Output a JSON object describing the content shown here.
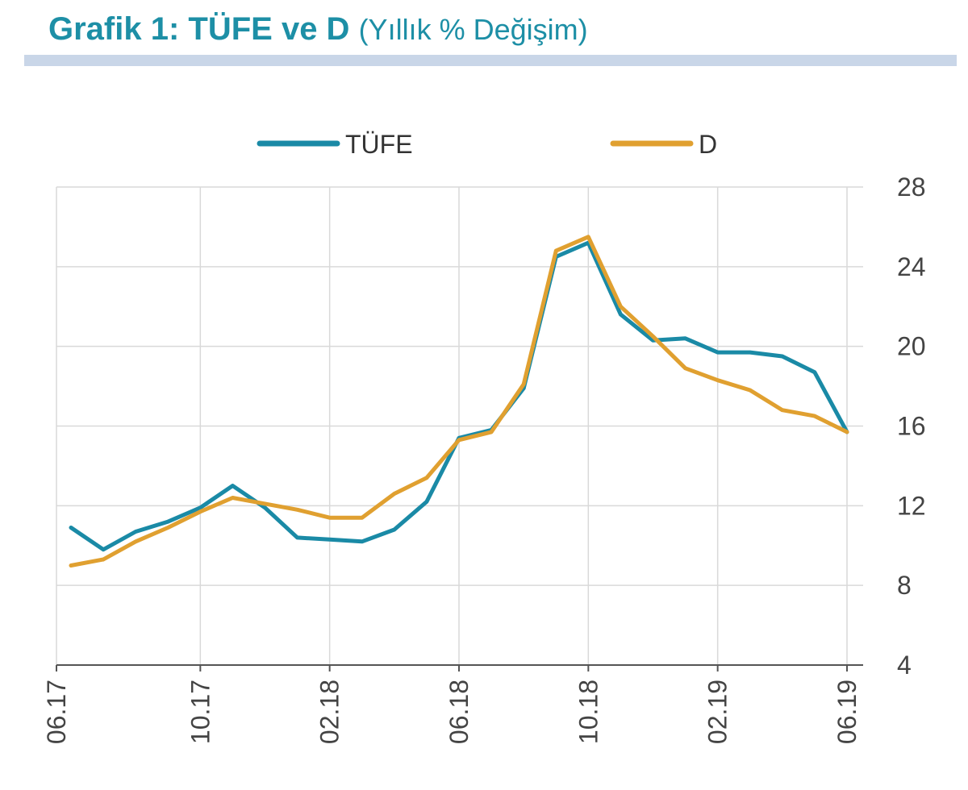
{
  "header": {
    "title_bold": "Grafik 1: TÜFE ve D",
    "title_rest": "(Yıllık % Değişim)"
  },
  "chart_data": {
    "type": "line",
    "title": "Grafik 1: TÜFE ve D (Yıllık % Değişim)",
    "xlabel": "",
    "ylabel": "",
    "x_tick_labels": [
      "06.17",
      "10.17",
      "02.18",
      "06.18",
      "10.18",
      "02.19",
      "06.19"
    ],
    "y_ticks": [
      4,
      8,
      12,
      16,
      20,
      24,
      28
    ],
    "ylim": [
      4,
      28
    ],
    "grid": true,
    "legend_position": "top",
    "y_axis_side": "right",
    "x": [
      "06.17",
      "07.17",
      "08.17",
      "09.17",
      "10.17",
      "11.17",
      "12.17",
      "01.18",
      "02.18",
      "03.18",
      "04.18",
      "05.18",
      "06.18",
      "07.18",
      "08.18",
      "09.18",
      "10.18",
      "11.18",
      "12.18",
      "01.19",
      "02.19",
      "03.19",
      "04.19",
      "05.19",
      "06.19"
    ],
    "series": [
      {
        "name": "TÜFE",
        "color": "#1a8aa6",
        "values": [
          10.9,
          9.8,
          10.7,
          11.2,
          11.9,
          13.0,
          11.9,
          10.4,
          10.3,
          10.2,
          10.8,
          12.2,
          15.4,
          15.8,
          17.9,
          24.5,
          25.2,
          21.6,
          20.3,
          20.4,
          19.7,
          19.7,
          19.5,
          18.7,
          15.7
        ]
      },
      {
        "name": "D",
        "color": "#e0a030",
        "values": [
          9.0,
          9.3,
          10.2,
          10.9,
          11.7,
          12.4,
          12.1,
          11.8,
          11.4,
          11.4,
          12.6,
          13.4,
          15.3,
          15.7,
          18.1,
          24.8,
          25.5,
          22.0,
          20.5,
          18.9,
          18.3,
          17.8,
          16.8,
          16.5,
          15.7
        ]
      }
    ]
  }
}
